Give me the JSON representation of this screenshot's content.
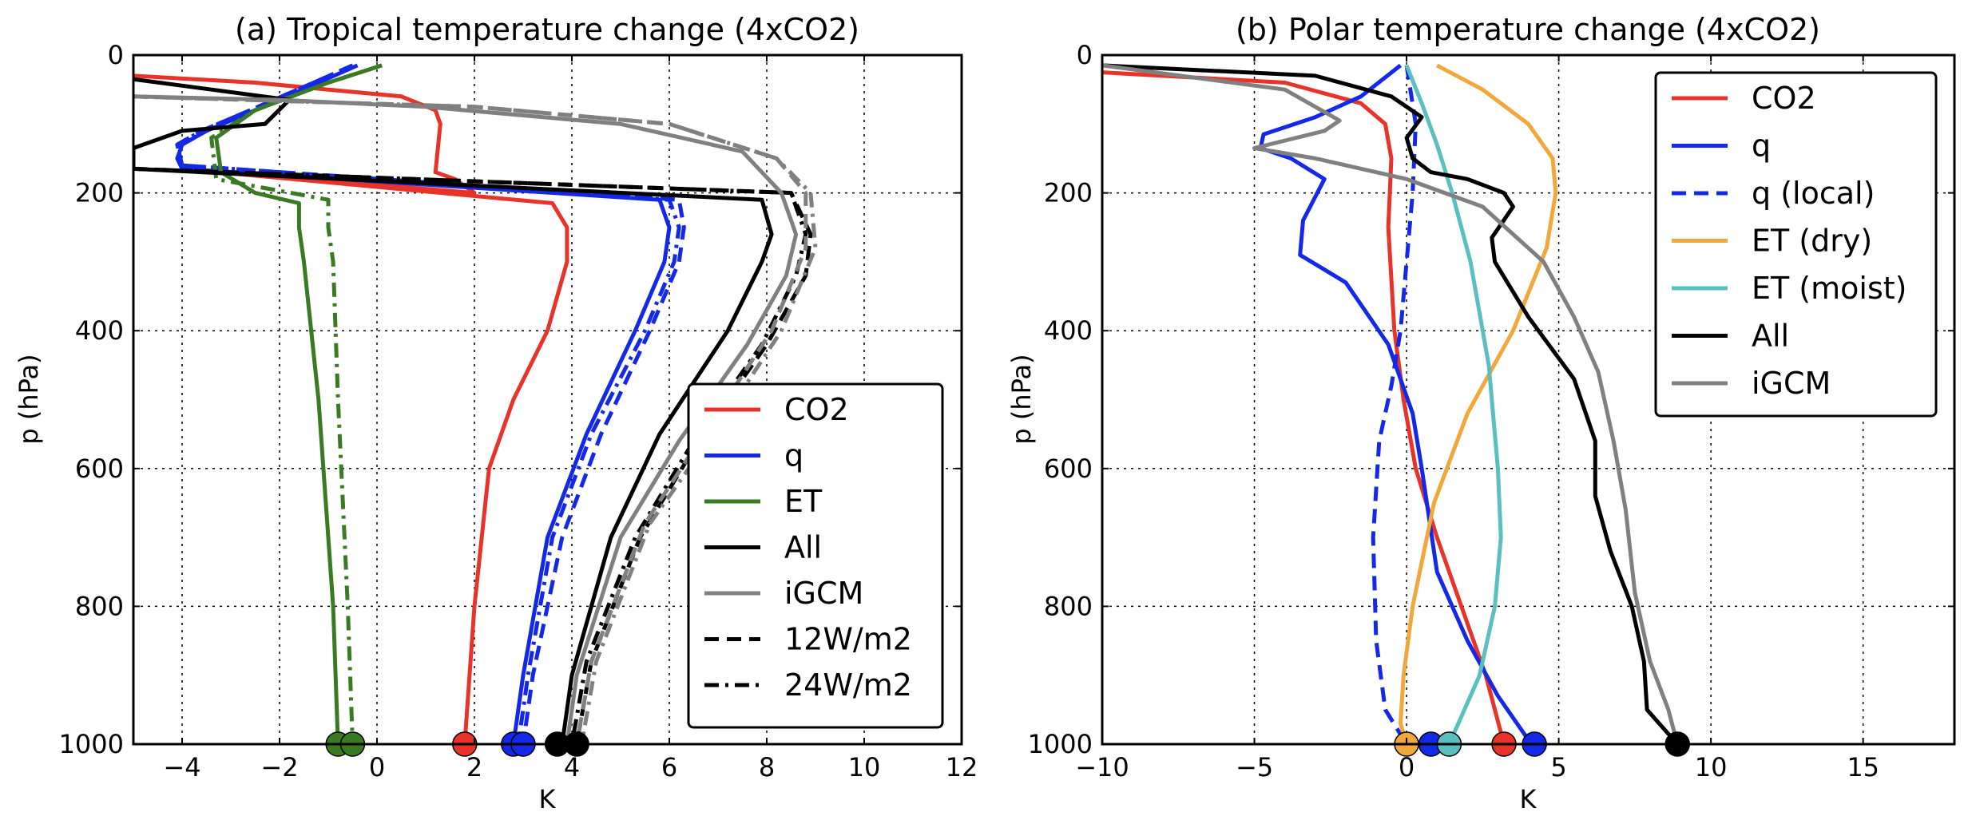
{
  "chart_data": [
    {
      "type": "line",
      "title": "(a) Tropical temperature change (4xCO2)",
      "xlabel": "K",
      "ylabel": "p (hPa)",
      "xlim": [
        -5,
        12
      ],
      "ylim": [
        1000,
        0
      ],
      "xticks": [
        "−4",
        "−2",
        "0",
        "2",
        "4",
        "6",
        "8",
        "10",
        "12"
      ],
      "yticks": [
        "0",
        "200",
        "400",
        "600",
        "800",
        "1000"
      ],
      "grid": true,
      "legend_position": "lower-right",
      "legend": [
        {
          "label": "CO2",
          "color": "#e8332a",
          "style": "solid"
        },
        {
          "label": "q",
          "color": "#1428e8",
          "style": "solid"
        },
        {
          "label": "ET",
          "color": "#3a7a22",
          "style": "solid"
        },
        {
          "label": "All",
          "color": "#000000",
          "style": "solid"
        },
        {
          "label": "iGCM",
          "color": "#808080",
          "style": "solid"
        },
        {
          "label": "12W/m2",
          "color": "#000000",
          "style": "dashed"
        },
        {
          "label": "24W/m2",
          "color": "#000000",
          "style": "dashdot"
        }
      ],
      "series": [
        {
          "name": "CO2",
          "color": "#e8332a",
          "style": "solid",
          "x": [
            -5,
            -2.5,
            -1.0,
            0.5,
            1.2,
            1.3,
            1.2,
            1.6,
            1.8,
            2.0,
            -4.0,
            3.6,
            3.9,
            3.9,
            3.5,
            2.8,
            2.3,
            2.0,
            1.9,
            1.8
          ],
          "y": [
            30,
            40,
            50,
            60,
            80,
            100,
            170,
            180,
            190,
            200,
            165,
            215,
            250,
            300,
            400,
            500,
            600,
            800,
            900,
            1000
          ]
        },
        {
          "name": "q",
          "color": "#1428e8",
          "style": "solid",
          "x": [
            -0.4,
            -1.2,
            -2.5,
            -3.5,
            -4.0,
            -4.1,
            -4.0,
            5.8,
            6.0,
            5.9,
            5.3,
            4.3,
            3.5,
            3.0,
            2.8
          ],
          "y": [
            15,
            40,
            80,
            110,
            130,
            150,
            165,
            210,
            250,
            300,
            400,
            550,
            700,
            900,
            1000
          ]
        },
        {
          "name": "q dashed",
          "color": "#1428e8",
          "style": "dashed",
          "x": [
            -0.5,
            -1.3,
            -2.6,
            -3.6,
            -4.1,
            -4.0,
            6.2,
            6.3,
            6.2,
            5.6,
            4.6,
            3.8,
            3.2,
            3.0
          ],
          "y": [
            15,
            40,
            80,
            110,
            130,
            160,
            210,
            250,
            300,
            400,
            550,
            700,
            900,
            1000
          ]
        },
        {
          "name": "q dashdot",
          "color": "#1428e8",
          "style": "dashdot",
          "x": [
            -0.5,
            -1.3,
            -2.6,
            -3.6,
            -4.1,
            -4.0,
            6.0,
            6.2,
            6.1,
            5.5,
            4.4,
            3.6,
            3.1,
            2.9
          ],
          "y": [
            15,
            40,
            80,
            110,
            130,
            160,
            210,
            250,
            300,
            400,
            550,
            700,
            900,
            1000
          ]
        },
        {
          "name": "ET",
          "color": "#3a7a22",
          "style": "solid",
          "x": [
            0.1,
            -1.0,
            -2.5,
            -3.3,
            -3.2,
            -2.5,
            -1.6,
            -1.6,
            -1.5,
            -1.2,
            -0.9,
            -0.8
          ],
          "y": [
            15,
            40,
            80,
            120,
            170,
            200,
            215,
            250,
            300,
            500,
            800,
            1000
          ]
        },
        {
          "name": "ET dashdot",
          "color": "#3a7a22",
          "style": "dashdot",
          "x": [
            0.1,
            -1.0,
            -2.5,
            -3.4,
            -3.3,
            -1.0,
            -1.0,
            -0.9,
            -0.8,
            -0.6,
            -0.5
          ],
          "y": [
            15,
            40,
            80,
            120,
            180,
            210,
            250,
            300,
            500,
            800,
            1000
          ]
        },
        {
          "name": "All",
          "color": "#000000",
          "style": "solid",
          "x": [
            -5.0,
            -1.8,
            -2.3,
            -4.0,
            -5.0,
            -5.0,
            7.9,
            8.1,
            7.9,
            7.2,
            5.8,
            4.8,
            4.0,
            3.8
          ],
          "y": [
            35,
            65,
            100,
            110,
            135,
            165,
            210,
            260,
            300,
            400,
            550,
            700,
            900,
            1000
          ]
        },
        {
          "name": "All dashed",
          "color": "#000000",
          "style": "dashed",
          "x": [
            -5.0,
            8.5,
            8.9,
            8.8,
            8.0,
            6.6,
            5.4,
            4.4,
            4.1
          ],
          "y": [
            165,
            200,
            260,
            320,
            420,
            560,
            700,
            880,
            1000
          ]
        },
        {
          "name": "All dashdot",
          "color": "#000000",
          "style": "dashdot",
          "x": [
            -5.0,
            8.5,
            8.8,
            8.6,
            7.9,
            6.5,
            5.3,
            4.3,
            4.0
          ],
          "y": [
            165,
            200,
            260,
            320,
            420,
            560,
            700,
            880,
            1000
          ]
        },
        {
          "name": "iGCM",
          "color": "#808080",
          "style": "solid",
          "x": [
            -5.0,
            -2.0,
            1.0,
            5.0,
            7.5,
            8.3,
            8.6,
            8.4,
            7.6,
            6.2,
            5.0,
            4.1,
            3.9
          ],
          "y": [
            60,
            65,
            75,
            100,
            140,
            200,
            260,
            320,
            420,
            560,
            700,
            900,
            1000
          ]
        },
        {
          "name": "iGCM dashed",
          "color": "#808080",
          "style": "dashed",
          "x": [
            -5.0,
            2.0,
            6.0,
            8.2,
            8.8,
            8.8,
            8.1,
            6.8,
            5.5,
            4.4,
            4.1
          ],
          "y": [
            60,
            75,
            100,
            150,
            200,
            280,
            400,
            540,
            680,
            880,
            1000
          ]
        },
        {
          "name": "iGCM dashdot",
          "color": "#808080",
          "style": "dashdot",
          "x": [
            -5.0,
            2.0,
            6.0,
            8.2,
            8.9,
            9.0,
            8.3,
            7.0,
            5.6,
            4.5,
            4.2
          ],
          "y": [
            60,
            75,
            100,
            150,
            200,
            280,
            400,
            540,
            680,
            880,
            1000
          ]
        }
      ],
      "markers": [
        {
          "x": -0.8,
          "y": 1000,
          "color": "#3a7a22"
        },
        {
          "x": -0.5,
          "y": 1000,
          "color": "#3a7a22"
        },
        {
          "x": 1.8,
          "y": 1000,
          "color": "#e8332a"
        },
        {
          "x": 2.8,
          "y": 1000,
          "color": "#1428e8"
        },
        {
          "x": 3.0,
          "y": 1000,
          "color": "#1428e8"
        },
        {
          "x": 3.7,
          "y": 1000,
          "color": "#000000"
        },
        {
          "x": 4.1,
          "y": 1000,
          "color": "#000000"
        }
      ]
    },
    {
      "type": "line",
      "title": "(b) Polar temperature change (4xCO2)",
      "xlabel": "K",
      "ylabel": "p (hPa)",
      "xlim": [
        -10,
        18
      ],
      "ylim": [
        1000,
        0
      ],
      "xticks": [
        "−10",
        "−5",
        "0",
        "5",
        "10",
        "15"
      ],
      "yticks": [
        "0",
        "200",
        "400",
        "600",
        "800",
        "1000"
      ],
      "grid": true,
      "legend_position": "upper-right",
      "legend": [
        {
          "label": "CO2",
          "color": "#e8332a",
          "style": "solid"
        },
        {
          "label": "q",
          "color": "#1428e8",
          "style": "solid"
        },
        {
          "label": "q (local)",
          "color": "#1428e8",
          "style": "dashed"
        },
        {
          "label": "ET (dry)",
          "color": "#f0a83c",
          "style": "solid"
        },
        {
          "label": "ET (moist)",
          "color": "#5abfbf",
          "style": "solid"
        },
        {
          "label": "All",
          "color": "#000000",
          "style": "solid"
        },
        {
          "label": "iGCM",
          "color": "#808080",
          "style": "solid"
        }
      ],
      "series": [
        {
          "name": "CO2",
          "color": "#e8332a",
          "style": "solid",
          "x": [
            -10,
            -4,
            -1.5,
            -0.7,
            -0.5,
            -0.6,
            -0.4,
            -0.1,
            0.3,
            1.0,
            1.8,
            2.6,
            3.2
          ],
          "y": [
            25,
            40,
            70,
            100,
            150,
            250,
            400,
            500,
            600,
            700,
            800,
            900,
            1000
          ]
        },
        {
          "name": "q",
          "color": "#1428e8",
          "style": "solid",
          "x": [
            -0.2,
            -1.5,
            -3.0,
            -4.7,
            -4.8,
            -3.8,
            -2.7,
            -3.4,
            -3.5,
            -2.0,
            -0.6,
            0.2,
            0.5,
            1.0,
            2.0,
            3.0,
            4.1
          ],
          "y": [
            15,
            60,
            90,
            115,
            135,
            150,
            180,
            240,
            290,
            330,
            420,
            520,
            600,
            750,
            850,
            930,
            1000
          ]
        },
        {
          "name": "q (local)",
          "color": "#1428e8",
          "style": "dashed",
          "x": [
            0.0,
            0.3,
            0.2,
            0.0,
            -0.2,
            -0.5,
            -0.9,
            -1.1,
            -1.0,
            -0.7,
            0.0
          ],
          "y": [
            15,
            100,
            200,
            300,
            400,
            480,
            560,
            700,
            850,
            950,
            1000
          ]
        },
        {
          "name": "ET (dry)",
          "color": "#f0a83c",
          "style": "solid",
          "x": [
            1.0,
            2.5,
            4.0,
            4.8,
            4.9,
            4.6,
            3.5,
            2.0,
            0.9,
            0.2,
            -0.1,
            -0.2,
            0.0
          ],
          "y": [
            15,
            50,
            100,
            150,
            200,
            280,
            400,
            520,
            650,
            800,
            900,
            970,
            1000
          ]
        },
        {
          "name": "ET (moist)",
          "color": "#5abfbf",
          "style": "solid",
          "x": [
            0.0,
            0.5,
            1.0,
            1.5,
            2.1,
            2.7,
            3.0,
            3.1,
            2.9,
            2.4,
            1.8,
            1.4
          ],
          "y": [
            15,
            70,
            130,
            200,
            300,
            450,
            600,
            700,
            800,
            900,
            960,
            1000
          ]
        },
        {
          "name": "All",
          "color": "#000000",
          "style": "solid",
          "x": [
            -10,
            -3,
            -0.5,
            0.5,
            0.0,
            0.2,
            0.8,
            2.0,
            3.2,
            3.5,
            2.8,
            2.9,
            4.0,
            5.5,
            6.2,
            6.2,
            6.7,
            7.4,
            7.8,
            7.9,
            8.6,
            9.0
          ],
          "y": [
            15,
            30,
            60,
            90,
            120,
            150,
            170,
            180,
            200,
            220,
            265,
            300,
            380,
            470,
            560,
            640,
            720,
            800,
            880,
            950,
            985,
            1000
          ]
        },
        {
          "name": "iGCM",
          "color": "#808080",
          "style": "solid",
          "x": [
            -10,
            -4,
            -2.2,
            -2.7,
            -5.0,
            -3.0,
            0.0,
            2.5,
            4.5,
            5.5,
            6.3,
            6.8,
            7.2,
            7.5,
            8.0,
            8.6,
            8.9
          ],
          "y": [
            15,
            50,
            95,
            110,
            135,
            150,
            180,
            220,
            300,
            380,
            460,
            560,
            660,
            780,
            880,
            950,
            1000
          ]
        }
      ],
      "markers": [
        {
          "x": 0.0,
          "y": 1000,
          "color": "#f0a83c"
        },
        {
          "x": 0.8,
          "y": 1000,
          "color": "#1428e8"
        },
        {
          "x": 1.4,
          "y": 1000,
          "color": "#5abfbf"
        },
        {
          "x": 3.2,
          "y": 1000,
          "color": "#e8332a"
        },
        {
          "x": 4.2,
          "y": 1000,
          "color": "#1428e8"
        },
        {
          "x": 8.9,
          "y": 1000,
          "color": "#000000"
        }
      ]
    }
  ]
}
